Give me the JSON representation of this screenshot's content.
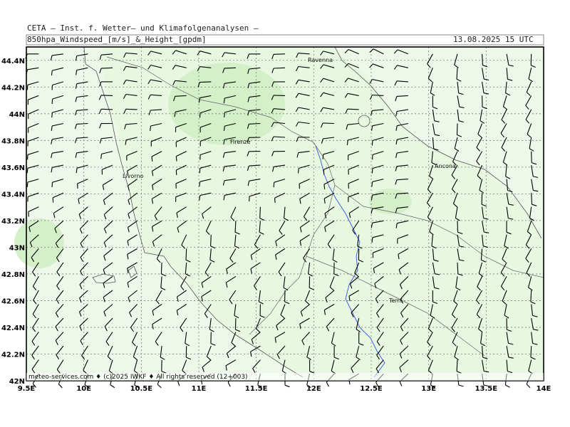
{
  "header": {
    "line1": "CETA – Inst. f. Wetter– und Klimafolgenanalysen –",
    "line2": "850hpa_Windspeed_[m/s]_&_Height_[gpdm]",
    "timestamp": "13.08.2025 15 UTC"
  },
  "map": {
    "lon_range": [
      9.5,
      14.0
    ],
    "lat_range": [
      42.0,
      44.5
    ],
    "x_ticks": [
      "9.5E",
      "10E",
      "10.5E",
      "11E",
      "11.5E",
      "12E",
      "12.5E",
      "13E",
      "13.5E",
      "14E"
    ],
    "y_ticks": [
      "42N",
      "42.2N",
      "42.4N",
      "42.6N",
      "42.8N",
      "43N",
      "43.2N",
      "43.4N",
      "43.6N",
      "43.8N",
      "44N",
      "44.2N",
      "44.4N"
    ],
    "cities": [
      "Ravenna",
      "Firenze",
      "Livorno",
      "Ancona",
      "Terni"
    ],
    "footer": "meteo-services.com ♦ (c)2025 IWKF ♦ All rights reserved (12+003)",
    "colors": {
      "land": "#e7f6df",
      "sea": "#eef8e8",
      "highlight": "#cdefc3",
      "grid": "#7a7a7a",
      "border": "#000000",
      "river": "#3355dd"
    }
  }
}
